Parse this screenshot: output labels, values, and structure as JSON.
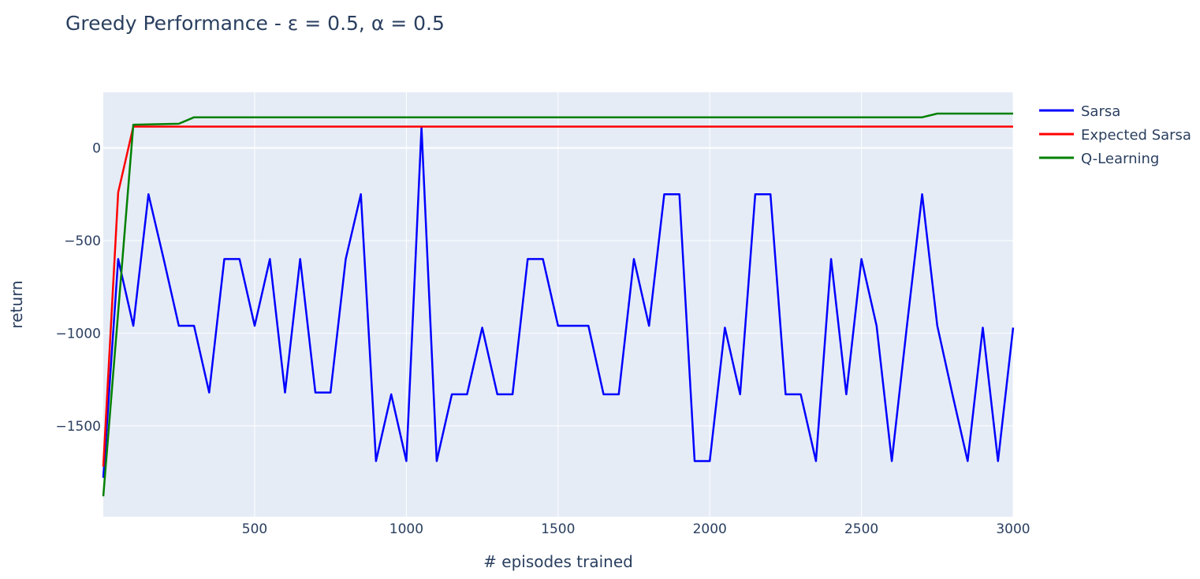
{
  "chart_data": {
    "type": "line",
    "title": "Greedy Performance - ε = 0.5, α = 0.5",
    "xlabel": "# episodes trained",
    "ylabel": "return",
    "xlim": [
      1,
      3000
    ],
    "ylim": [
      -1990,
      300
    ],
    "x_ticks": [
      500,
      1000,
      1500,
      2000,
      2500,
      3000
    ],
    "x_tick_labels": [
      "500",
      "1000",
      "1500",
      "2000",
      "2500",
      "3000"
    ],
    "y_ticks": [
      0,
      -500,
      -1000,
      -1500
    ],
    "y_tick_labels": [
      "0",
      "−500",
      "−1000",
      "−1500"
    ],
    "grid": true,
    "plot_background": "#e5ecf6",
    "legend_position": "top-right",
    "series": [
      {
        "name": "Sarsa",
        "color": "#0000ff",
        "x": [
          1,
          50,
          100,
          150,
          200,
          250,
          300,
          350,
          400,
          450,
          500,
          550,
          600,
          650,
          700,
          750,
          800,
          850,
          900,
          950,
          1000,
          1050,
          1100,
          1150,
          1200,
          1250,
          1300,
          1350,
          1400,
          1450,
          1500,
          1550,
          1600,
          1650,
          1700,
          1750,
          1800,
          1850,
          1900,
          1950,
          2000,
          2050,
          2100,
          2150,
          2200,
          2250,
          2300,
          2350,
          2400,
          2450,
          2500,
          2550,
          2600,
          2650,
          2700,
          2750,
          2800,
          2850,
          2900,
          2950,
          3000
        ],
        "y": [
          -1780,
          -600,
          -960,
          -250,
          -600,
          -960,
          -960,
          -1320,
          -600,
          -600,
          -960,
          -600,
          -1320,
          -600,
          -1320,
          -1320,
          -600,
          -250,
          -1690,
          -1330,
          -1690,
          110,
          -1690,
          -1330,
          -1330,
          -970,
          -1330,
          -1330,
          -600,
          -600,
          -960,
          -960,
          -960,
          -1330,
          -1330,
          -600,
          -960,
          -250,
          -250,
          -1690,
          -1690,
          -970,
          -1330,
          -250,
          -250,
          -1330,
          -1330,
          -1690,
          -600,
          -1330,
          -600,
          -960,
          -1690,
          -960,
          -250,
          -960,
          -1330,
          -1690,
          -970,
          -1690,
          -970
        ]
      },
      {
        "name": "Expected Sarsa",
        "color": "#ff0000",
        "x": [
          1,
          50,
          100,
          150,
          3000
        ],
        "y": [
          -1720,
          -240,
          115,
          115,
          115
        ]
      },
      {
        "name": "Q-Learning",
        "color": "#008000",
        "x": [
          1,
          100,
          250,
          300,
          2700,
          2750,
          3000
        ],
        "y": [
          -1880,
          125,
          130,
          165,
          165,
          185,
          185
        ]
      }
    ]
  }
}
